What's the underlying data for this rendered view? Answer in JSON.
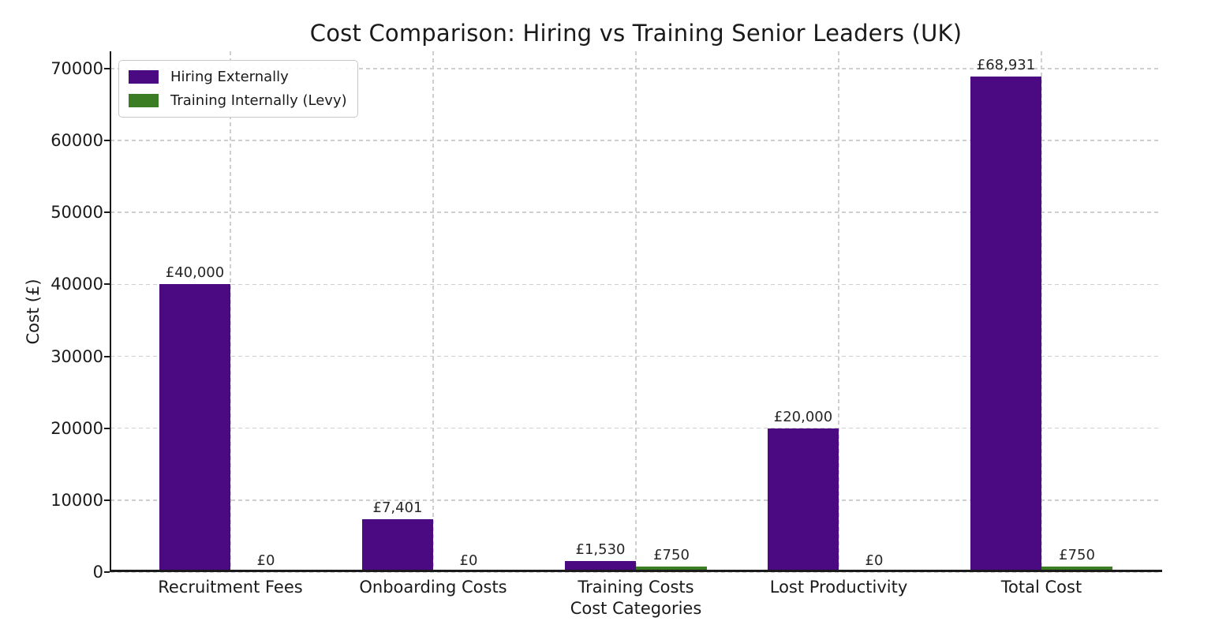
{
  "title": "Cost Comparison: Hiring vs Training Senior Leaders (UK)",
  "chart_data": {
    "type": "bar",
    "title": "Cost Comparison: Hiring vs Training Senior Leaders (UK)",
    "xlabel": "Cost Categories",
    "ylabel": "Cost (£)",
    "categories": [
      "Recruitment Fees",
      "Onboarding Costs",
      "Training Costs",
      "Lost Productivity",
      "Total Cost"
    ],
    "series": [
      {
        "name": "Hiring Externally",
        "color": "#4b0a82",
        "values": [
          40000,
          7401,
          1530,
          20000,
          68931
        ],
        "value_labels": [
          "£40,000",
          "£7,401",
          "£1,530",
          "£20,000",
          "£68,931"
        ]
      },
      {
        "name": "Training Internally (Levy)",
        "color": "#3a7d23",
        "values": [
          0,
          0,
          750,
          0,
          750
        ],
        "value_labels": [
          "£0",
          "£0",
          "£750",
          "£0",
          "£750"
        ]
      }
    ],
    "ylim": [
      0,
      72400
    ],
    "yticks": [
      0,
      10000,
      20000,
      30000,
      40000,
      50000,
      60000,
      70000
    ],
    "grid": "dashed gridlines on both axes",
    "legend_position": "upper left",
    "text_color": "#1a1a1a",
    "grid_color": "#cfcfcf",
    "background_color": "#ffffff"
  }
}
